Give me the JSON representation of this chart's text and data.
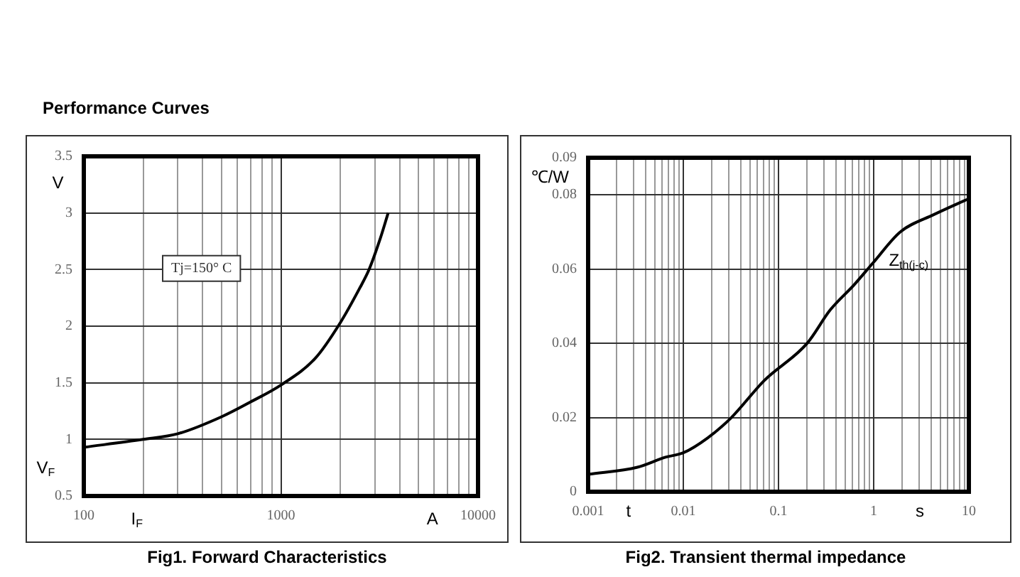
{
  "chart_data": [
    {
      "type": "line",
      "title": "Fig1. Forward Characteristics",
      "subtitle": "Performance Curves",
      "xlabel": "I$_{F}$",
      "ylabel": "V$_{F}$",
      "annotations": [
        "V",
        "A",
        "Tj=150° C"
      ],
      "x": [
        100,
        200,
        300,
        500,
        700,
        1000,
        1500,
        2000,
        2500,
        2800,
        3200,
        3500
      ],
      "values": [
        0.93,
        1.0,
        1.05,
        1.2,
        1.33,
        1.48,
        1.72,
        2.03,
        2.33,
        2.5,
        2.78,
        3.0
      ],
      "color": "#000000",
      "log": "x",
      "grid": true,
      "legend": false,
      "marker": "none",
      "line_style": "solid",
      "xlim": [
        100,
        10000
      ],
      "xticks": [
        100,
        {
          "value": 200,
          "label": null
        },
        {
          "value": 300,
          "label": null
        },
        {
          "value": 400,
          "label": null
        },
        {
          "value": 500,
          "label": null
        },
        {
          "value": 600,
          "label": null
        },
        {
          "value": 700,
          "label": null
        },
        {
          "value": 800,
          "label": null
        },
        {
          "value": 900,
          "label": null
        },
        1000,
        {
          "value": 2000,
          "label": null
        },
        {
          "value": 3000,
          "label": null
        },
        {
          "value": 4000,
          "label": null
        },
        {
          "value": 5000,
          "label": null
        },
        {
          "value": 6000,
          "label": null
        },
        {
          "value": 7000,
          "label": null
        },
        {
          "value": 8000,
          "label": null
        },
        {
          "value": 9000,
          "label": null
        },
        10000
      ],
      "ylim": [
        0.5,
        3.5
      ],
      "yticks": [
        0.5,
        1,
        1.5,
        2,
        2.5,
        3,
        3.5
      ]
    },
    {
      "type": "line",
      "title": "Fig2. Transient thermal impedance",
      "xlabel": "t",
      "ylabel": "℃/W",
      "annotations": [
        "s",
        "Z$_{th(j-c)}$"
      ],
      "x": [
        0.001,
        0.0033,
        0.0065,
        0.01,
        0.018,
        0.032,
        0.071,
        0.2,
        0.35,
        0.62,
        0.98,
        1.9,
        4.3,
        10
      ],
      "values": [
        0.0047,
        0.0066,
        0.0093,
        0.0105,
        0.0145,
        0.02,
        0.03,
        0.04,
        0.049,
        0.0557,
        0.0616,
        0.07,
        0.0747,
        0.079
      ],
      "color": "#000000",
      "log": "x",
      "grid": true,
      "legend": false,
      "marker": "none",
      "line_style": "solid",
      "xlim": [
        0.001,
        10
      ],
      "xticks": [
        0.001,
        {
          "value": 0.002,
          "label": null
        },
        {
          "value": 0.003,
          "label": null
        },
        {
          "value": 0.004,
          "label": null
        },
        {
          "value": 0.005,
          "label": null
        },
        {
          "value": 0.006,
          "label": null
        },
        {
          "value": 0.007,
          "label": null
        },
        {
          "value": 0.008,
          "label": null
        },
        {
          "value": 0.009,
          "label": null
        },
        0.01,
        {
          "value": 0.02,
          "label": null
        },
        {
          "value": 0.03,
          "label": null
        },
        {
          "value": 0.04,
          "label": null
        },
        {
          "value": 0.05,
          "label": null
        },
        {
          "value": 0.06,
          "label": null
        },
        {
          "value": 0.07,
          "label": null
        },
        {
          "value": 0.08,
          "label": null
        },
        {
          "value": 0.09,
          "label": null
        },
        0.1,
        {
          "value": 0.2,
          "label": null
        },
        {
          "value": 0.3,
          "label": null
        },
        {
          "value": 0.4,
          "label": null
        },
        {
          "value": 0.5,
          "label": null
        },
        {
          "value": 0.6,
          "label": null
        },
        {
          "value": 0.7,
          "label": null
        },
        {
          "value": 0.8,
          "label": null
        },
        {
          "value": 0.9,
          "label": null
        },
        1,
        {
          "value": 2,
          "label": null
        },
        {
          "value": 3,
          "label": null
        },
        {
          "value": 4,
          "label": null
        },
        {
          "value": 5,
          "label": null
        },
        {
          "value": 6,
          "label": null
        },
        {
          "value": 7,
          "label": null
        },
        {
          "value": 8,
          "label": null
        },
        {
          "value": 9,
          "label": null
        },
        10
      ],
      "ylim": [
        0,
        0.09
      ],
      "yticks": [
        0,
        0.02,
        0.04,
        0.06,
        0.08,
        0.09
      ]
    }
  ]
}
